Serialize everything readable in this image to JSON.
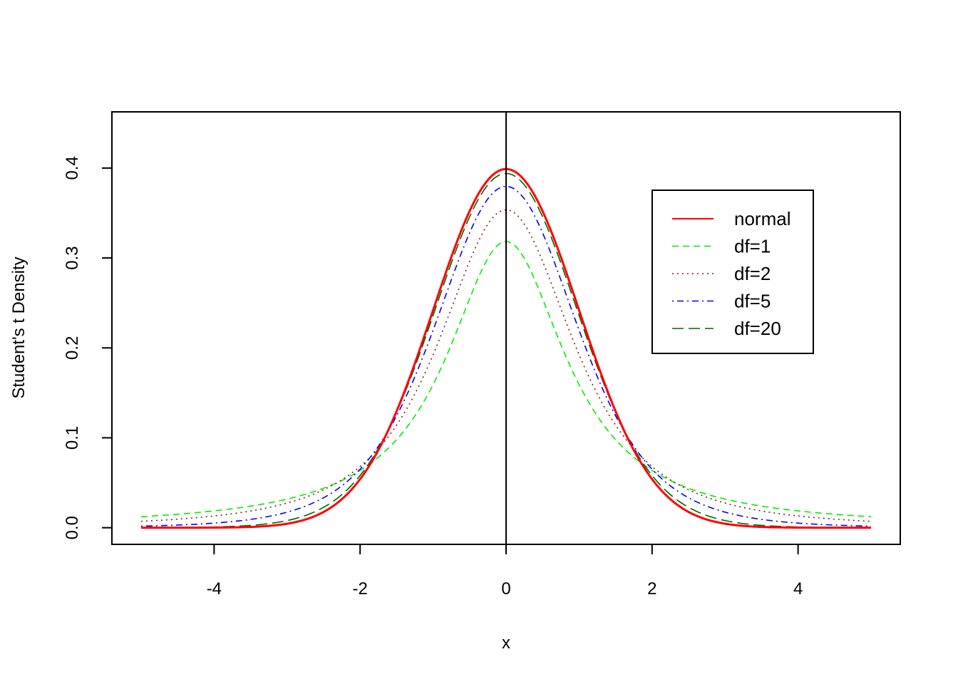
{
  "chart_data": {
    "type": "line",
    "title": "",
    "xlabel": "x",
    "ylabel": "Student's t Density",
    "xlim": [
      -5.4,
      5.4
    ],
    "ylim": [
      -0.0185,
      0.4625
    ],
    "x_ticks": [
      -4,
      -2,
      0,
      2,
      4
    ],
    "x_tick_labels": [
      "-4",
      "-2",
      "0",
      "2",
      "4"
    ],
    "y_ticks": [
      0.0,
      0.1,
      0.2,
      0.3,
      0.4
    ],
    "y_tick_labels": [
      "0.0",
      "0.1",
      "0.2",
      "0.3",
      "0.4"
    ],
    "x_range": [
      -5,
      5
    ],
    "vertical_line_x": 0,
    "grid": false,
    "legend_position": "top-right",
    "series": [
      {
        "name": "normal",
        "df": null,
        "color": "#ff0000",
        "dash": "solid",
        "width": 3
      },
      {
        "name": "df=1",
        "df": 1,
        "color": "#00ee00",
        "dash": "dashed",
        "width": 1.6
      },
      {
        "name": "df=2",
        "df": 2,
        "color": "#8b1a1a",
        "dash": "dotted",
        "width": 1.6
      },
      {
        "name": "df=5",
        "df": 5,
        "color": "#0000ff",
        "dash": "dotdash",
        "width": 1.6
      },
      {
        "name": "df=20",
        "df": 20,
        "color": "#006400",
        "dash": "longdash",
        "width": 1.6
      }
    ]
  }
}
